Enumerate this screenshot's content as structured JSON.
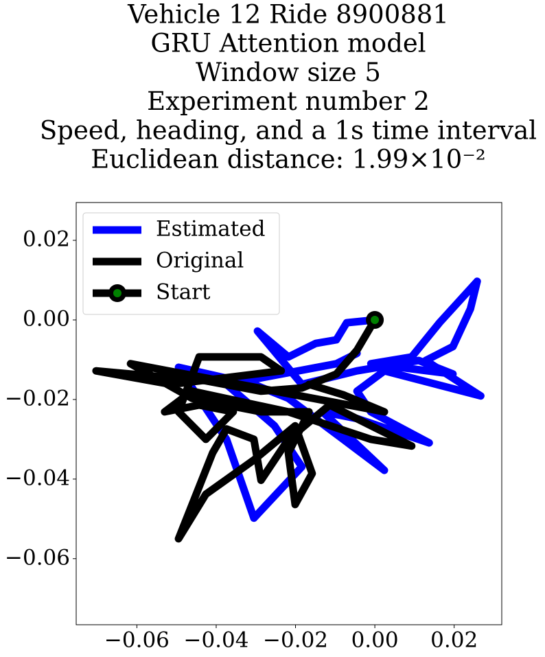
{
  "chart_data": {
    "type": "line",
    "title": [
      "Vehicle 12 Ride 8900881",
      "GRU Attention model",
      "Window size 5",
      "Experiment number 2",
      "Speed, heading, and a 1s time interval",
      "Euclidean distance: 1.99×10⁻²"
    ],
    "xlim": [
      -0.0753,
      0.032
    ],
    "ylim": [
      -0.0766,
      0.0295
    ],
    "xticks": [
      {
        "value": -0.06,
        "label": "−0.06"
      },
      {
        "value": -0.04,
        "label": "−0.04"
      },
      {
        "value": -0.02,
        "label": "−0.02"
      },
      {
        "value": 0,
        "label": "0.00"
      },
      0.02
    ],
    "yticks": [
      {
        "value": -0.06,
        "label": "−0.06"
      },
      {
        "value": -0.04,
        "label": "−0.04"
      },
      {
        "value": -0.02,
        "label": "−0.02"
      },
      {
        "value": 0,
        "label": "0.00"
      },
      0.02
    ],
    "legend": "upper left",
    "series": [
      {
        "name": "Estimated",
        "color": "blue",
        "x": [
          0,
          -0.0071,
          -0.0097,
          -0.0149,
          -0.0218,
          -0.0296,
          -0.0184,
          -0.0045,
          0.0111,
          0.0197,
          -0.001,
          0.0093,
          0.0163,
          0.0258,
          0.0241,
          0.0197,
          0.0128,
          0.0267,
          0.0024,
          -0.0045,
          -0.001,
          0.0137,
          -0.0045,
          -0.0132,
          0.0024,
          -0.008,
          -0.0218,
          -0.0305,
          -0.0495,
          -0.0374,
          -0.0305,
          -0.0184,
          -0.0253,
          -0.0374,
          -0.0097,
          -0.0045
        ],
        "y": [
          0,
          -0.0007,
          -0.005,
          -0.0059,
          -0.0093,
          -0.0028,
          -0.0162,
          -0.0128,
          -0.0102,
          -0.0136,
          -0.011,
          -0.0093,
          -0.0007,
          0.0097,
          0.0028,
          -0.0067,
          -0.0102,
          -0.0191,
          -0.0128,
          -0.0179,
          -0.0231,
          -0.0309,
          -0.0248,
          -0.0231,
          -0.0378,
          -0.03,
          -0.0197,
          -0.0162,
          -0.0119,
          -0.03,
          -0.0498,
          -0.0369,
          -0.0266,
          -0.0162,
          -0.011,
          -0.0084
        ]
      },
      {
        "name": "Original",
        "color": "black",
        "x": [
          0,
          -0.0045,
          -0.0097,
          -0.0184,
          -0.0287,
          -0.0426,
          -0.0703,
          -0.0513,
          -0.0236,
          -0.0287,
          -0.0443,
          -0.0495,
          -0.0426,
          -0.0357,
          -0.0443,
          -0.053,
          -0.0461,
          -0.0218,
          -0.001,
          0.0093,
          -0.0114,
          -0.0218,
          -0.0287,
          -0.0305,
          -0.0374,
          -0.0409,
          -0.0495,
          -0.0426,
          -0.0305,
          -0.0201,
          -0.0158,
          -0.0201,
          -0.0218,
          -0.0166,
          -0.0287,
          -0.0461,
          -0.0616,
          0.0024,
          -0.008,
          -0.0166
        ],
        "y": [
          0,
          -0.0076,
          -0.0136,
          -0.0171,
          -0.0179,
          -0.0153,
          -0.0128,
          -0.0162,
          -0.0128,
          -0.0093,
          -0.0093,
          -0.0231,
          -0.03,
          -0.0231,
          -0.0214,
          -0.0231,
          -0.0179,
          -0.0231,
          -0.03,
          -0.0317,
          -0.0214,
          -0.03,
          -0.0403,
          -0.03,
          -0.0274,
          -0.0334,
          -0.055,
          -0.0438,
          -0.0352,
          -0.0266,
          -0.0386,
          -0.0464,
          -0.0334,
          -0.0231,
          -0.0231,
          -0.0197,
          -0.011,
          -0.0231,
          -0.0188,
          -0.0162
        ]
      },
      {
        "name": "Start",
        "color": "black",
        "marker_color": "green",
        "x": [
          0
        ],
        "y": [
          0
        ]
      }
    ]
  }
}
